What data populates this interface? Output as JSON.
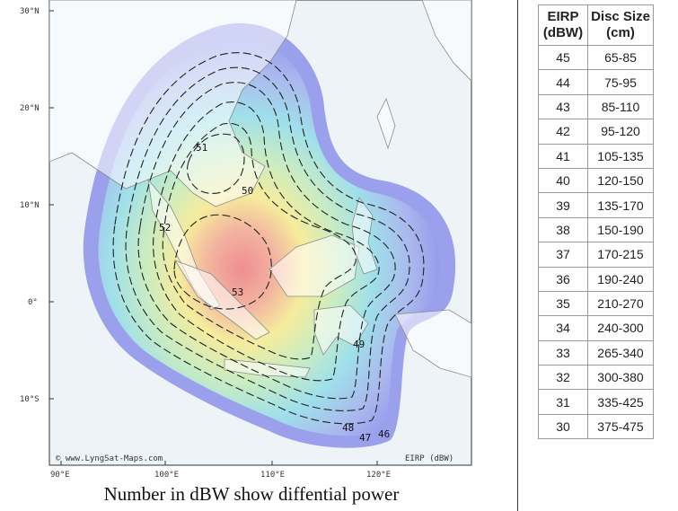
{
  "map": {
    "lat_labels": [
      "30°N",
      "20°N",
      "10°N",
      "0°",
      "10°S"
    ],
    "lon_labels": [
      "90°E",
      "100°E",
      "110°E",
      "120°E"
    ],
    "contours": [
      {
        "dbw": "53"
      },
      {
        "dbw": "52"
      },
      {
        "dbw": "51"
      },
      {
        "dbw": "50"
      },
      {
        "dbw": "49"
      },
      {
        "dbw": "48"
      },
      {
        "dbw": "47"
      },
      {
        "dbw": "46"
      }
    ],
    "credit": "© www.LyngSat-Maps.com",
    "unit_label": "EIRP (dBW)",
    "colors": {
      "ocean": "#eef3f8",
      "land": "#ffffff",
      "outer": "#8c90ea",
      "mid": "#9fe0ea",
      "inner": "#f6ec9c",
      "peak": "#ee8e90"
    }
  },
  "caption": "Number in dBW show diffential power",
  "table": {
    "header_eirp": [
      "EIRP",
      "(dBW)"
    ],
    "header_disc": [
      "Disc Size",
      "(cm)"
    ],
    "rows": [
      {
        "eirp": "45",
        "disc": "65-85"
      },
      {
        "eirp": "44",
        "disc": "75-95"
      },
      {
        "eirp": "43",
        "disc": "85-110"
      },
      {
        "eirp": "42",
        "disc": "95-120"
      },
      {
        "eirp": "41",
        "disc": "105-135"
      },
      {
        "eirp": "40",
        "disc": "120-150"
      },
      {
        "eirp": "39",
        "disc": "135-170"
      },
      {
        "eirp": "38",
        "disc": "150-190"
      },
      {
        "eirp": "37",
        "disc": "170-215"
      },
      {
        "eirp": "36",
        "disc": "190-240"
      },
      {
        "eirp": "35",
        "disc": "210-270"
      },
      {
        "eirp": "34",
        "disc": "240-300"
      },
      {
        "eirp": "33",
        "disc": "265-340"
      },
      {
        "eirp": "32",
        "disc": "300-380"
      },
      {
        "eirp": "31",
        "disc": "335-425"
      },
      {
        "eirp": "30",
        "disc": "375-475"
      }
    ]
  }
}
